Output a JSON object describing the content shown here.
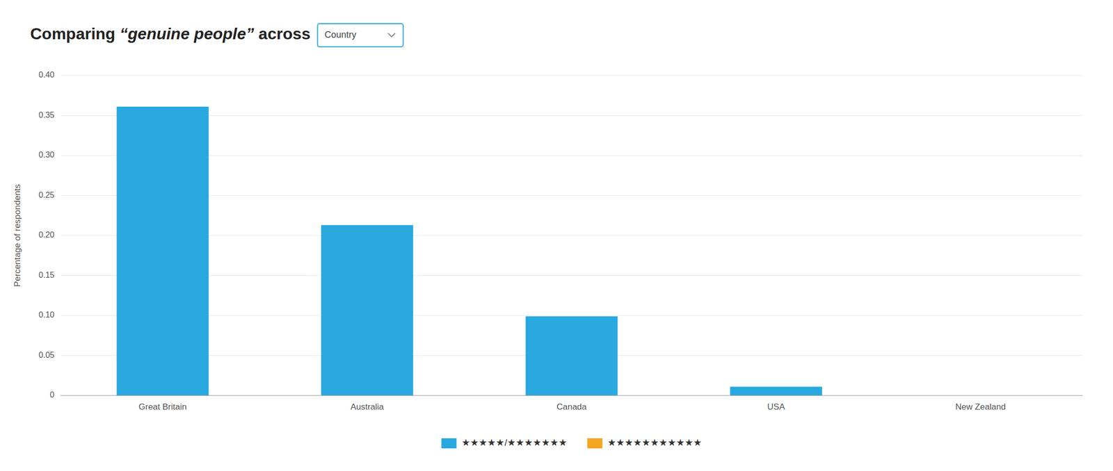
{
  "chart_data": {
    "type": "bar",
    "title": "Comparing “genuine people” across",
    "annotations": [
      "Country"
    ],
    "ylabel": "Percentage of respondents",
    "categories": [
      "Great Britain",
      "Australia",
      "Canada",
      "USA",
      "New Zealand"
    ],
    "series": [
      {
        "name": "★★★★★/★★★★★★★",
        "color": "#29a8e0",
        "values": [
          0.361,
          0.213,
          0.099,
          0.011,
          0.0
        ]
      },
      {
        "name": "★★★★★★★★★★★",
        "color": "#f5a623",
        "values": [
          null,
          null,
          null,
          null,
          null
        ]
      }
    ],
    "ylim": [
      0,
      0.4
    ],
    "yticks": [
      0,
      0.05,
      {
        "value": 0.1,
        "label": "0.10"
      },
      0.15,
      {
        "value": 0.2,
        "label": "0.20"
      },
      0.25,
      {
        "value": 0.3,
        "label": "0.30"
      },
      0.35,
      {
        "value": 0.4,
        "label": "0.40"
      }
    ],
    "grid": true,
    "legend": "bottom"
  }
}
